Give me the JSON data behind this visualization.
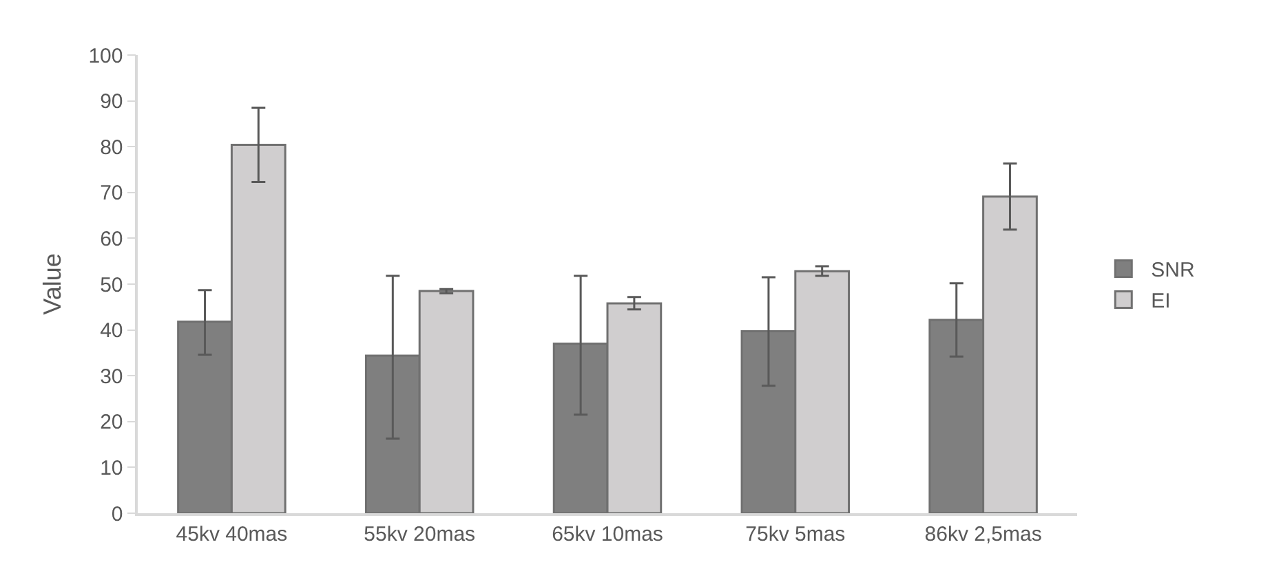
{
  "chart_data": {
    "type": "bar",
    "ylabel": "Value",
    "categories": [
      "45kv 40mas",
      "55kv 20mas",
      "65kv 10mas",
      "75kv 5mas",
      "86kv 2,5mas"
    ],
    "series": [
      {
        "name": "SNR",
        "color": "#7f7f7f",
        "values": [
          41.8,
          34.4,
          37,
          39.7,
          42.2
        ],
        "errors": [
          [
            34.6,
            48.7
          ],
          [
            16.3,
            51.8
          ],
          [
            21.5,
            51.8
          ],
          [
            27.8,
            51.5
          ],
          [
            34.2,
            50.2
          ]
        ]
      },
      {
        "name": "EI",
        "color": "#d0cecf",
        "values": [
          80.4,
          48.5,
          45.8,
          52.8,
          69.1
        ],
        "errors": [
          [
            72.3,
            88.5
          ],
          [
            48.0,
            48.9
          ],
          [
            44.5,
            47.2
          ],
          [
            51.8,
            53.9
          ],
          [
            61.9,
            76.3
          ]
        ]
      }
    ],
    "ylim": [
      0,
      100
    ],
    "yticks": [
      0,
      10,
      20,
      30,
      40,
      50,
      60,
      70,
      80,
      90,
      100
    ],
    "grid": false,
    "legend": "right"
  }
}
